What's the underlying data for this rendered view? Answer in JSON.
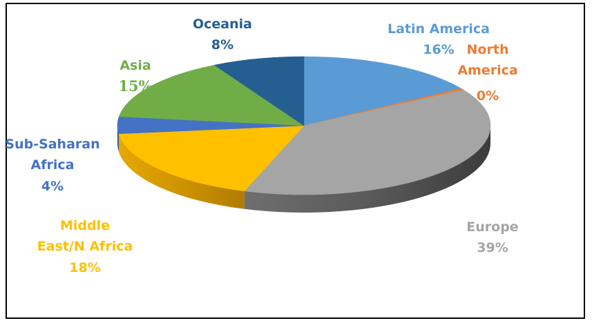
{
  "chart_data": {
    "type": "pie",
    "title": "",
    "slices": [
      {
        "label": [
          "Latin America"
        ],
        "pct_label": "16%",
        "value": 16,
        "color": "#5B9BD5"
      },
      {
        "label": [
          "North",
          "America"
        ],
        "pct_label": "0%",
        "value": 0.4,
        "color": "#ED7D31"
      },
      {
        "label": [
          "Europe"
        ],
        "pct_label": "39%",
        "value": 39,
        "color": "#A5A5A5"
      },
      {
        "label": [
          "Middle",
          "East/N Africa"
        ],
        "pct_label": "18%",
        "value": 18,
        "color": "#FFC000"
      },
      {
        "label": [
          "Sub-Saharan",
          "Africa"
        ],
        "pct_label": "4%",
        "value": 4,
        "color": "#4472C4"
      },
      {
        "label": [
          "Asia"
        ],
        "pct_label": "15%",
        "value": 15,
        "color": "#70AD47"
      },
      {
        "label": [
          "Oceania"
        ],
        "pct_label": "8%",
        "value": 8,
        "color": "#255E91"
      }
    ],
    "legend": "none",
    "style": "3d-pie"
  }
}
